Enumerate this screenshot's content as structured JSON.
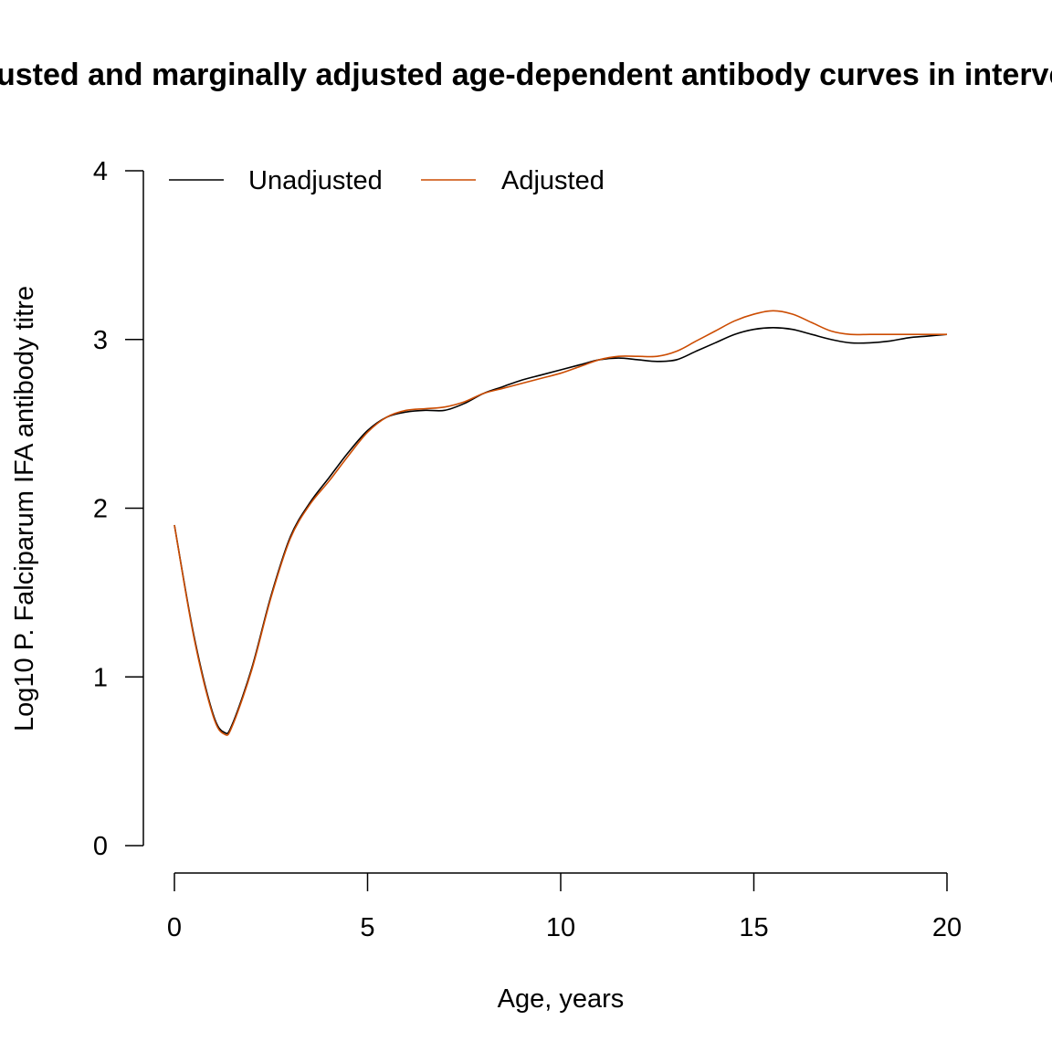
{
  "chart_data": {
    "type": "line",
    "title": "Unadjusted and marginally adjusted age-dependent antibody curves in intervention",
    "xlabel": "Age, years",
    "ylabel": "Log10 P. Falciparum IFA antibody titre",
    "xlim": [
      0,
      20
    ],
    "ylim": [
      0,
      4
    ],
    "x_ticks": [
      "0",
      "5",
      "10",
      "15",
      "20"
    ],
    "y_ticks": [
      "0",
      "1",
      "2",
      "3",
      "4"
    ],
    "grid": false,
    "legend_position": "top-left",
    "x": [
      0,
      0.5,
      1.0,
      1.3,
      1.5,
      2.0,
      2.5,
      3.0,
      3.5,
      4.0,
      4.5,
      5.0,
      5.5,
      6.0,
      6.5,
      7.0,
      7.5,
      8.0,
      8.5,
      9.0,
      9.5,
      10.0,
      10.5,
      11.0,
      11.5,
      12.0,
      12.5,
      13.0,
      13.5,
      14.0,
      14.5,
      15.0,
      15.5,
      16.0,
      16.5,
      17.0,
      17.5,
      18.0,
      18.5,
      19.0,
      19.5,
      20.0
    ],
    "series": [
      {
        "name": "Unadjusted",
        "color": "#000000",
        "values": [
          1.9,
          1.25,
          0.78,
          0.67,
          0.72,
          1.05,
          1.48,
          1.83,
          2.03,
          2.18,
          2.33,
          2.46,
          2.54,
          2.57,
          2.58,
          2.58,
          2.62,
          2.68,
          2.72,
          2.76,
          2.79,
          2.82,
          2.85,
          2.88,
          2.89,
          2.88,
          2.87,
          2.88,
          2.93,
          2.98,
          3.03,
          3.06,
          3.07,
          3.06,
          3.03,
          3.0,
          2.98,
          2.98,
          2.99,
          3.01,
          3.02,
          3.03
        ]
      },
      {
        "name": "Adjusted",
        "color": "#CC4C02",
        "values": [
          1.9,
          1.24,
          0.77,
          0.66,
          0.71,
          1.04,
          1.47,
          1.82,
          2.02,
          2.16,
          2.31,
          2.45,
          2.54,
          2.58,
          2.59,
          2.6,
          2.63,
          2.68,
          2.71,
          2.74,
          2.77,
          2.8,
          2.84,
          2.88,
          2.9,
          2.9,
          2.9,
          2.93,
          2.99,
          3.05,
          3.11,
          3.15,
          3.17,
          3.15,
          3.1,
          3.05,
          3.03,
          3.03,
          3.03,
          3.03,
          3.03,
          3.03
        ]
      }
    ]
  }
}
